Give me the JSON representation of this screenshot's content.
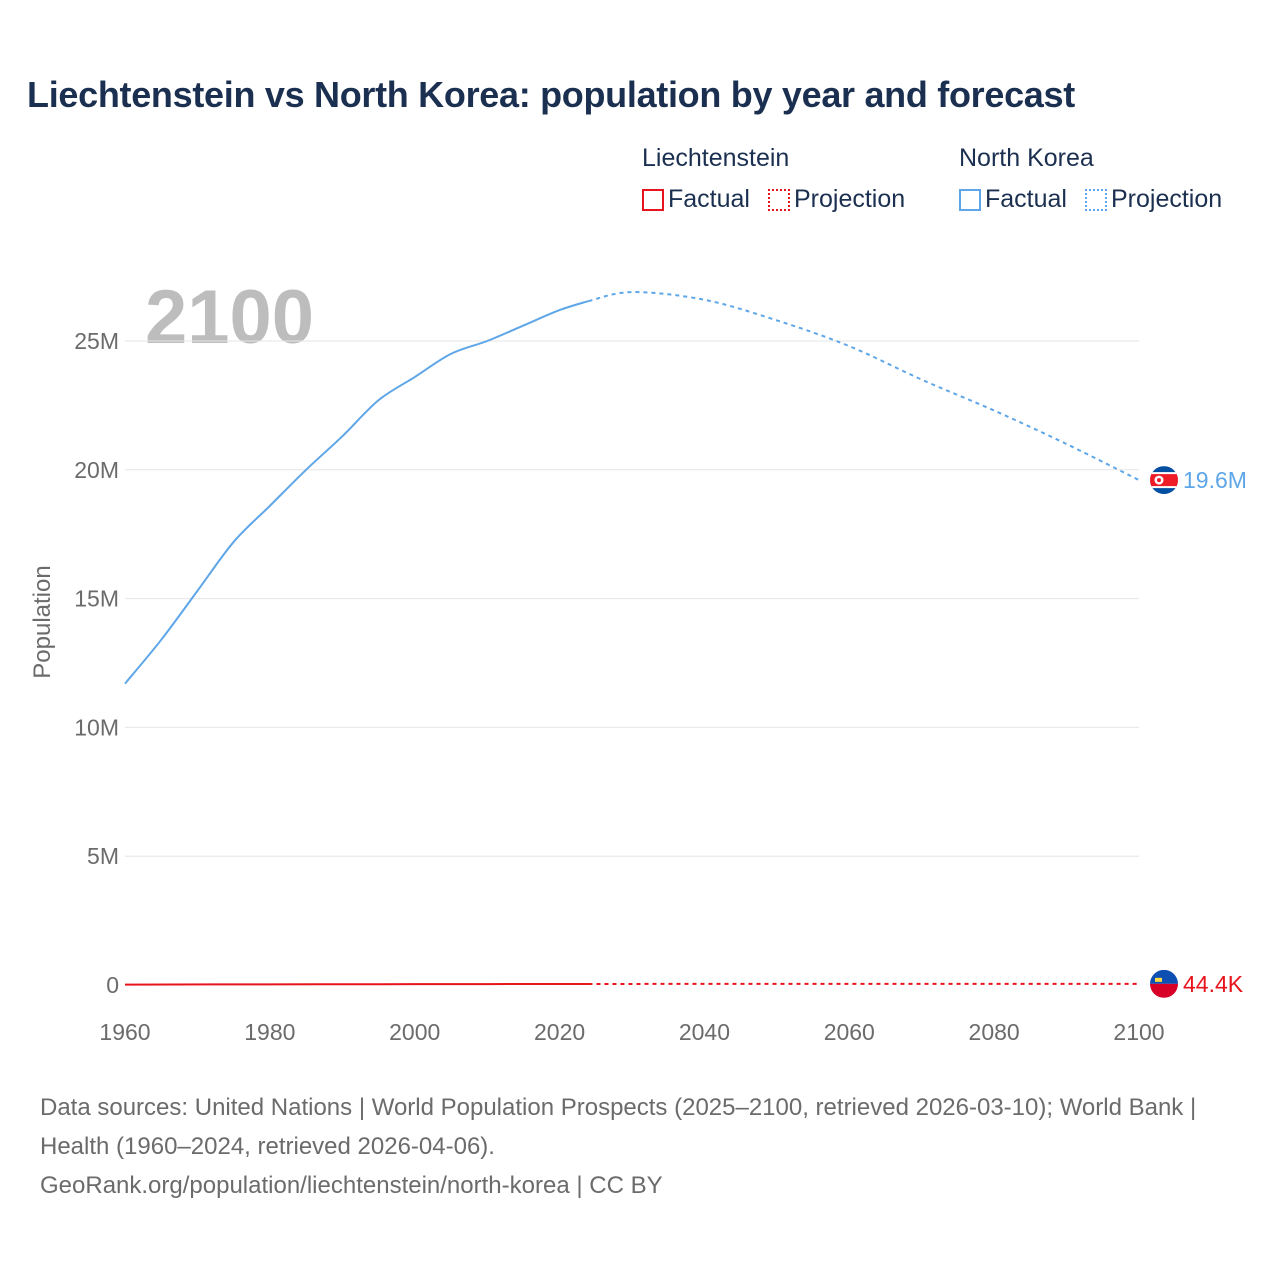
{
  "title": "Liechtenstein vs North Korea: population by year and forecast",
  "legend": [
    {
      "country": "Liechtenstein",
      "color": "#e8141c",
      "factual": "Factual",
      "projection": "Projection"
    },
    {
      "country": "North Korea",
      "color": "#5ea6e8",
      "factual": "Factual",
      "projection": "Projection"
    }
  ],
  "chart_data": {
    "type": "line",
    "title": "Liechtenstein vs North Korea: population by year and forecast",
    "year_label": "2100",
    "xlabel": "",
    "ylabel": "Population",
    "xlim": [
      1960,
      2100
    ],
    "ylim": [
      0,
      27000000
    ],
    "x_ticks": [
      "1960",
      "1980",
      "2000",
      "2020",
      "2040",
      "2060",
      "2080",
      "2100"
    ],
    "y_ticks": [
      {
        "v": 0,
        "label": "0"
      },
      {
        "v": 5000000,
        "label": "5M"
      },
      {
        "v": 10000000,
        "label": "10M"
      },
      {
        "v": 15000000,
        "label": "15M"
      },
      {
        "v": 20000000,
        "label": "20M"
      },
      {
        "v": 25000000,
        "label": "25M"
      }
    ],
    "grid": true,
    "projection_start": 2024,
    "series": [
      {
        "name": "North Korea",
        "color": "#5ea6e8",
        "end_label": "19.6M",
        "x": [
          1960,
          1965,
          1970,
          1975,
          1980,
          1985,
          1990,
          1995,
          2000,
          2005,
          2010,
          2015,
          2020,
          2024,
          2030,
          2040,
          2050,
          2060,
          2070,
          2080,
          2090,
          2100
        ],
        "y": [
          11700000,
          13400000,
          15300000,
          17200000,
          18600000,
          20000000,
          21300000,
          22700000,
          23600000,
          24500000,
          25000000,
          25600000,
          26200000,
          26550000,
          26900000,
          26600000,
          25800000,
          24800000,
          23500000,
          22300000,
          21000000,
          19600000
        ]
      },
      {
        "name": "Liechtenstein",
        "color": "#e8141c",
        "end_label": "44.4K",
        "x": [
          1960,
          1980,
          2000,
          2024,
          2050,
          2100
        ],
        "y": [
          16500,
          25800,
          33100,
          40000,
          43500,
          44400
        ]
      }
    ]
  },
  "footer": {
    "sources": "Data sources: United Nations | World Population Prospects (2025–2100, retrieved 2026-03-10); World Bank | Health (1960–2024, retrieved 2026-04-06).",
    "link": "GeoRank.org/population/liechtenstein/north-korea | CC BY"
  }
}
